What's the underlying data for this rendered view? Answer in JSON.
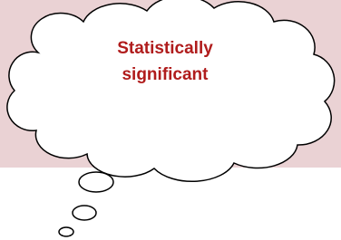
{
  "callout": {
    "lines": [
      "Statistically",
      "significant"
    ]
  }
}
